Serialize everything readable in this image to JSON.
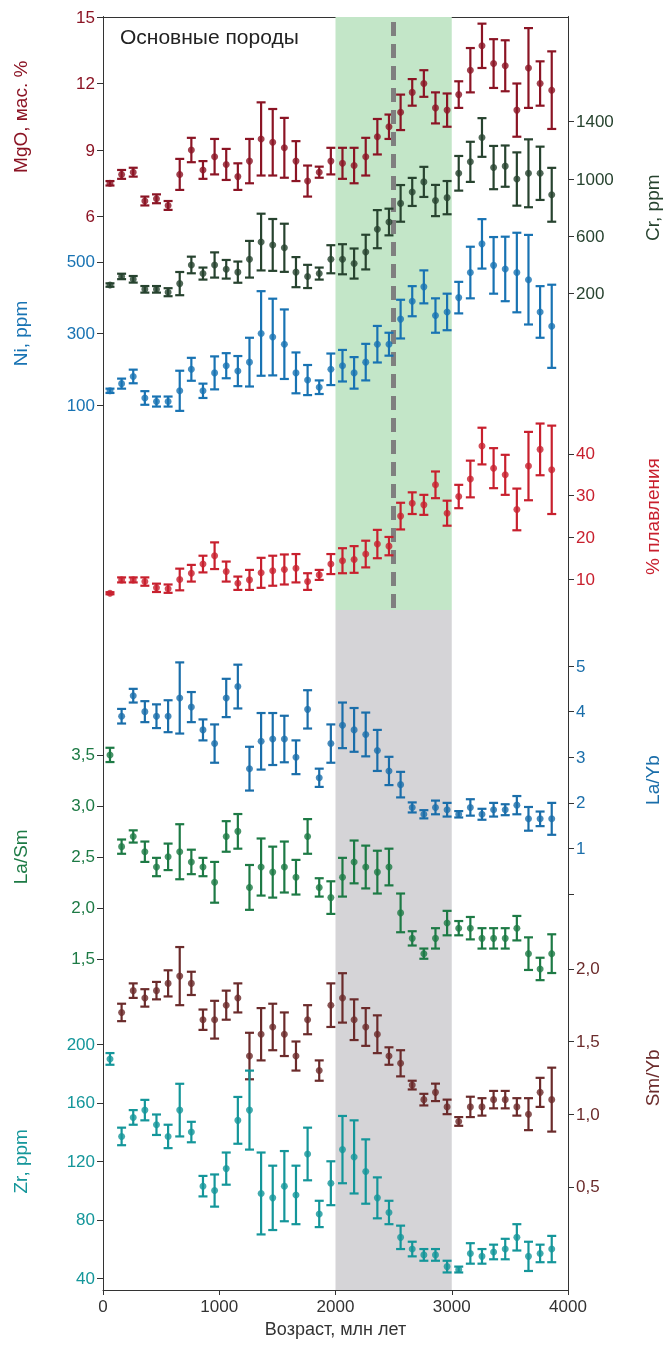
{
  "chart_data": [
    {
      "type": "scatter",
      "ylabel": "MgO, мас. %",
      "annotations": [
        "Основные породы"
      ],
      "x": [
        60,
        160,
        260,
        360,
        460,
        560,
        660,
        760,
        860,
        960,
        1060,
        1160,
        1260,
        1360,
        1460,
        1560,
        1660,
        1760,
        1860,
        1960,
        2060,
        2160,
        2260,
        2360,
        2460,
        2560,
        2660,
        2760,
        2860,
        2960,
        3060,
        3160,
        3260,
        3360,
        3460,
        3560,
        3660,
        3760,
        3860
      ],
      "xlim": [
        0,
        4000
      ],
      "xticks": [
        0,
        1000,
        2000,
        3000,
        4000
      ],
      "ylim": [
        -42.42,
        15
      ],
      "yticks": [
        6,
        9,
        12,
        15
      ],
      "tick_labels": "y",
      "marker": "circle",
      "series": [
        {
          "color": "#8b1424",
          "values": [
            7.5,
            7.9,
            8.0,
            6.7,
            6.8,
            6.5,
            7.9,
            9.0,
            8.1,
            8.7,
            8.35,
            7.8,
            8.5,
            9.5,
            9.35,
            9.1,
            8.5,
            7.6,
            8.0,
            8.5,
            8.4,
            8.3,
            8.7,
            9.6,
            10.05,
            10.7,
            11.6,
            12.0,
            10.9,
            10.8,
            11.5,
            12.6,
            13.7,
            12.9,
            12.8,
            10.8,
            12.7,
            12.0,
            11.7
          ],
          "errors": [
            0.1,
            0.2,
            0.2,
            0.2,
            0.2,
            0.2,
            0.7,
            0.55,
            0.4,
            0.8,
            0.7,
            0.6,
            1.0,
            1.65,
            1.5,
            1.35,
            0.9,
            0.7,
            0.25,
            0.6,
            0.7,
            0.8,
            0.85,
            0.8,
            0.55,
            0.8,
            0.6,
            0.6,
            0.7,
            0.75,
            0.6,
            1.0,
            1.0,
            1.1,
            1.15,
            1.2,
            1.8,
            1.0,
            1.75
          ]
        }
      ],
      "bands": [
        {
          "axis": "x",
          "from": 2000,
          "to": 3000,
          "color": "#c3e6c8"
        }
      ],
      "ref_lines": [
        {
          "axis": "x",
          "value": 2500,
          "color": "#7f7f7f",
          "line_style": "dashed"
        }
      ]
    },
    {
      "type": "scatter",
      "y2label": "Cr, ppm",
      "x": [
        60,
        160,
        260,
        360,
        460,
        560,
        660,
        760,
        860,
        960,
        1060,
        1160,
        1260,
        1360,
        1460,
        1560,
        1660,
        1760,
        1860,
        1960,
        2060,
        2160,
        2260,
        2360,
        2460,
        2560,
        2660,
        2760,
        2860,
        2960,
        3060,
        3160,
        3260,
        3360,
        3460,
        3560,
        3660,
        3760,
        3860
      ],
      "xlim": [
        0,
        4000
      ],
      "xticks": [
        0,
        1000,
        2000,
        3000,
        4000
      ],
      "y2lim": [
        -6755,
        2131
      ],
      "y2ticks": [
        200,
        600,
        1000,
        1400
      ],
      "tick_labels": "y",
      "marker": "circle",
      "series": [
        {
          "color": "#27432f",
          "axis": "y2",
          "values": [
            260,
            320,
            300,
            230,
            230,
            210,
            270,
            400,
            340,
            400,
            370,
            350,
            440,
            560,
            540,
            520,
            350,
            320,
            340,
            440,
            440,
            410,
            490,
            650,
            700,
            830,
            910,
            980,
            850,
            870,
            1040,
            1120,
            1290,
            1080,
            1090,
            1000,
            1040,
            1040,
            890
          ],
          "errors": [
            12,
            19,
            23,
            23,
            23,
            28,
            81,
            58,
            42,
            88,
            65,
            74,
            128,
            198,
            181,
            168,
            105,
            81,
            42,
            98,
            105,
            105,
            121,
            133,
            93,
            128,
            98,
            105,
            109,
            116,
            121,
            140,
            135,
            151,
            144,
            186,
            237,
            186,
            188
          ]
        }
      ]
    },
    {
      "type": "scatter",
      "ylabel": "Ni, ppm",
      "x": [
        60,
        160,
        260,
        360,
        460,
        560,
        660,
        760,
        860,
        960,
        1060,
        1160,
        1260,
        1360,
        1460,
        1560,
        1660,
        1760,
        1860,
        1960,
        2060,
        2160,
        2260,
        2360,
        2460,
        2560,
        2660,
        2760,
        2860,
        2960,
        3060,
        3160,
        3260,
        3360,
        3460,
        3560,
        3660,
        3760,
        3860
      ],
      "xlim": [
        0,
        4000
      ],
      "xticks": [
        0,
        1000,
        2000,
        3000,
        4000
      ],
      "ylim": [
        -2369,
        1183
      ],
      "yticks": [
        100,
        300,
        500
      ],
      "tick_labels": "y",
      "marker": "circle",
      "series": [
        {
          "color": "#1873b3",
          "values": [
            140,
            160,
            180,
            120,
            110,
            110,
            140,
            200,
            140,
            190,
            210,
            195,
            220,
            300,
            290,
            270,
            190,
            170,
            150,
            200,
            210,
            190,
            220,
            270,
            270,
            340,
            390,
            430,
            350,
            360,
            400,
            470,
            550,
            490,
            480,
            470,
            450,
            360,
            320
          ],
          "errors": [
            6,
            14,
            19,
            19,
            14,
            14,
            56,
            32,
            20,
            46,
            35,
            42,
            68,
            118,
            107,
            97,
            57,
            42,
            19,
            44,
            44,
            44,
            51,
            51,
            32,
            54,
            42,
            46,
            48,
            51,
            44,
            72,
            69,
            79,
            90,
            111,
            125,
            72,
            116
          ]
        }
      ]
    },
    {
      "type": "scatter",
      "y2label": "% плавления",
      "x": [
        60,
        160,
        260,
        360,
        460,
        560,
        660,
        760,
        860,
        960,
        1060,
        1160,
        1260,
        1360,
        1460,
        1560,
        1660,
        1760,
        1860,
        1960,
        2060,
        2160,
        2260,
        2360,
        2460,
        2560,
        2660,
        2760,
        2860,
        2960,
        3060,
        3160,
        3260,
        3360,
        3460,
        3560,
        3660,
        3760,
        3860
      ],
      "xlim": [
        0,
        4000
      ],
      "xticks": [
        0,
        1000,
        2000,
        3000,
        4000
      ],
      "y2lim": [
        -160.5,
        144.8
      ],
      "y2ticks": [
        10,
        20,
        30,
        40
      ],
      "tick_labels": "y",
      "marker": "circle",
      "series": [
        {
          "color": "#c8202e",
          "axis": "y2",
          "values": [
            6.6,
            9.8,
            9.8,
            9.4,
            7.9,
            7.7,
            9.9,
            11.4,
            13.6,
            15.6,
            11.8,
            9.0,
            9.8,
            11.5,
            12.0,
            12.3,
            12.6,
            9.4,
            11.0,
            13.6,
            14.4,
            14.7,
            16.0,
            18.4,
            17.9,
            25.1,
            28.2,
            27.8,
            32.6,
            25.8,
            29.8,
            34.0,
            41.9,
            36.6,
            35.0,
            26.7,
            37.1,
            41.1,
            36.2
          ],
          "errors": [
            0.25,
            0.6,
            0.6,
            1.0,
            1.0,
            1.0,
            2.6,
            2.0,
            2.0,
            3.2,
            2.4,
            1.6,
            2.4,
            3.6,
            3.6,
            3.6,
            3.4,
            2.0,
            1.2,
            2.4,
            3.0,
            3.2,
            3.2,
            3.4,
            2.2,
            3.2,
            2.6,
            2.4,
            3.2,
            3.0,
            2.8,
            4.4,
            4.4,
            4.8,
            4.8,
            5.0,
            8.2,
            6.2,
            10.6
          ]
        }
      ]
    },
    {
      "type": "scatter",
      "y2label": "La/Yb",
      "x": [
        160,
        260,
        360,
        460,
        560,
        660,
        760,
        860,
        960,
        1060,
        1160,
        1260,
        1360,
        1460,
        1560,
        1660,
        1760,
        1860,
        1960,
        2060,
        2160,
        2260,
        2360,
        2460,
        2560,
        2660,
        2760,
        2860,
        2960,
        3060,
        3160,
        3260,
        3360,
        3460,
        3560,
        3660,
        3760,
        3860
      ],
      "xlim": [
        0,
        4000
      ],
      "xticks": [
        0,
        1000,
        2000,
        3000,
        4000
      ],
      "y2lim": [
        -8.68,
        19.23
      ],
      "y2ticks": [
        {
          "value": 0,
          "label": null
        },
        1,
        2,
        3,
        4,
        5
      ],
      "tick_labels": "y",
      "marker": "circle",
      "series": [
        {
          "color": "#1a6eaa",
          "axis": "y2",
          "values": [
            3.9,
            4.35,
            4.0,
            3.9,
            3.9,
            4.3,
            4.1,
            3.6,
            3.3,
            4.3,
            4.55,
            2.75,
            3.35,
            3.4,
            3.4,
            3.0,
            4.05,
            2.55,
            3.3,
            3.7,
            3.6,
            3.5,
            3.15,
            2.7,
            2.4,
            1.9,
            1.75,
            1.9,
            1.85,
            1.75,
            1.9,
            1.75,
            1.85,
            1.85,
            1.95,
            1.65,
            1.65,
            1.65
          ],
          "errors": [
            0.16,
            0.15,
            0.23,
            0.26,
            0.35,
            0.78,
            0.33,
            0.23,
            0.42,
            0.42,
            0.48,
            0.48,
            0.62,
            0.57,
            0.51,
            0.37,
            0.42,
            0.2,
            0.42,
            0.5,
            0.48,
            0.48,
            0.45,
            0.31,
            0.28,
            0.11,
            0.09,
            0.15,
            0.15,
            0.07,
            0.18,
            0.12,
            0.15,
            0.12,
            0.2,
            0.26,
            0.16,
            0.35
          ]
        }
      ],
      "bands": [
        {
          "axis": "x",
          "from": 2000,
          "to": 3000,
          "color": "#d5d4d7"
        }
      ]
    },
    {
      "type": "scatter",
      "ylabel": "La/Sm",
      "x": [
        60,
        160,
        260,
        360,
        460,
        560,
        660,
        760,
        860,
        960,
        1060,
        1160,
        1260,
        1360,
        1460,
        1560,
        1660,
        1760,
        1860,
        1960,
        2060,
        2160,
        2260,
        2360,
        2460,
        2560,
        2660,
        2760,
        2860,
        2960,
        3060,
        3160,
        3260,
        3360,
        3460,
        3560,
        3660,
        3760,
        3860
      ],
      "xlim": [
        0,
        4000
      ],
      "xticks": [
        0,
        1000,
        2000,
        3000,
        4000
      ],
      "ylim": [
        -1.75,
        10.74
      ],
      "yticks": [
        {
          "value": 1.5,
          "label": "1,5"
        },
        {
          "value": 2,
          "label": "2,0"
        },
        {
          "value": 2.5,
          "label": "2,5"
        },
        {
          "value": 3,
          "label": "3,0"
        },
        {
          "value": 3.5,
          "label": "3,5"
        }
      ],
      "tick_labels": "y",
      "marker": "circle",
      "series": [
        {
          "color": "#1d7a45",
          "values": [
            3.5,
            2.6,
            2.7,
            2.55,
            2.4,
            2.5,
            2.55,
            2.45,
            2.4,
            2.25,
            2.7,
            2.75,
            2.2,
            2.4,
            2.35,
            2.4,
            2.3,
            2.7,
            2.2,
            2.1,
            2.3,
            2.45,
            2.4,
            2.35,
            2.4,
            1.95,
            1.7,
            1.55,
            1.7,
            1.85,
            1.8,
            1.8,
            1.7,
            1.7,
            1.7,
            1.8,
            1.55,
            1.4,
            1.55
          ],
          "errors": [
            0.07,
            0.07,
            0.06,
            0.1,
            0.09,
            0.13,
            0.27,
            0.12,
            0.09,
            0.2,
            0.15,
            0.17,
            0.22,
            0.28,
            0.25,
            0.25,
            0.17,
            0.17,
            0.09,
            0.16,
            0.19,
            0.21,
            0.21,
            0.21,
            0.18,
            0.19,
            0.07,
            0.05,
            0.1,
            0.12,
            0.07,
            0.11,
            0.1,
            0.1,
            0.1,
            0.12,
            0.16,
            0.11,
            0.19
          ]
        }
      ]
    },
    {
      "type": "scatter",
      "y2label": "Sm/Yb",
      "x": [
        160,
        260,
        360,
        460,
        560,
        660,
        760,
        860,
        960,
        1060,
        1160,
        1260,
        1360,
        1460,
        1560,
        1660,
        1760,
        1860,
        1960,
        2060,
        2160,
        2260,
        2360,
        2460,
        2560,
        2660,
        2760,
        2860,
        2960,
        3060,
        3160,
        3260,
        3360,
        3460,
        3560,
        3660,
        3760,
        3860
      ],
      "xlim": [
        0,
        4000
      ],
      "xticks": [
        0,
        1000,
        2000,
        3000,
        4000
      ],
      "y2lim": [
        -0.21,
        8.55
      ],
      "y2ticks": [
        {
          "value": 0.5,
          "label": "0,5"
        },
        {
          "value": 1,
          "label": "1,0"
        },
        {
          "value": 1.5,
          "label": "1,5"
        },
        {
          "value": 2,
          "label": "2,0"
        }
      ],
      "tick_labels": "y",
      "marker": "circle",
      "series": [
        {
          "color": "#6b2b2b",
          "axis": "y2",
          "values": [
            1.7,
            1.85,
            1.8,
            1.85,
            1.9,
            1.95,
            1.9,
            1.65,
            1.65,
            1.75,
            1.8,
            1.4,
            1.55,
            1.6,
            1.55,
            1.4,
            1.65,
            1.3,
            1.75,
            1.8,
            1.65,
            1.6,
            1.55,
            1.4,
            1.35,
            1.2,
            1.1,
            1.15,
            1.05,
            0.95,
            1.05,
            1.05,
            1.1,
            1.1,
            1.05,
            1.0,
            1.15,
            1.1
          ],
          "errors": [
            0.06,
            0.05,
            0.06,
            0.06,
            0.09,
            0.2,
            0.08,
            0.07,
            0.13,
            0.1,
            0.1,
            0.16,
            0.18,
            0.16,
            0.15,
            0.1,
            0.1,
            0.07,
            0.15,
            0.17,
            0.14,
            0.13,
            0.13,
            0.06,
            0.09,
            0.03,
            0.04,
            0.06,
            0.05,
            0.03,
            0.07,
            0.06,
            0.06,
            0.06,
            0.06,
            0.11,
            0.1,
            0.22
          ]
        }
      ]
    },
    {
      "type": "scatter",
      "ylabel": "Zr, ppm",
      "xlabel": "Возраст, млн лет",
      "x": [
        60,
        160,
        260,
        360,
        460,
        560,
        660,
        760,
        860,
        960,
        1060,
        1160,
        1260,
        1360,
        1460,
        1560,
        1660,
        1760,
        1860,
        1960,
        2060,
        2160,
        2260,
        2360,
        2460,
        2560,
        2660,
        2760,
        2860,
        2960,
        3060,
        3160,
        3260,
        3360,
        3460,
        3560,
        3660,
        3760,
        3860
      ],
      "xlim": [
        0,
        4000
      ],
      "xticks": [
        0,
        1000,
        2000,
        3000,
        4000
      ],
      "ylim": [
        32,
        902.4
      ],
      "yticks": [
        40,
        80,
        120,
        160,
        200
      ],
      "marker": "circle",
      "series": [
        {
          "color": "#14969a",
          "values": [
            190,
            137,
            150,
            155,
            145,
            137,
            155,
            140,
            103,
            100,
            115,
            148,
            155,
            98,
            95,
            103,
            97,
            125,
            84,
            105,
            128,
            123,
            113,
            95,
            85,
            68,
            60,
            56,
            56,
            48,
            46,
            57,
            55,
            58,
            60,
            68,
            55,
            57,
            60
          ],
          "errors": [
            4,
            6,
            5,
            7,
            7,
            8,
            18,
            7,
            7,
            11,
            11,
            16,
            27,
            28,
            22,
            24,
            20,
            18,
            9,
            15,
            23,
            25,
            22,
            14,
            8,
            8,
            5,
            4,
            4,
            4,
            2,
            7,
            5,
            5,
            7,
            9,
            10,
            6,
            9
          ]
        }
      ]
    }
  ]
}
